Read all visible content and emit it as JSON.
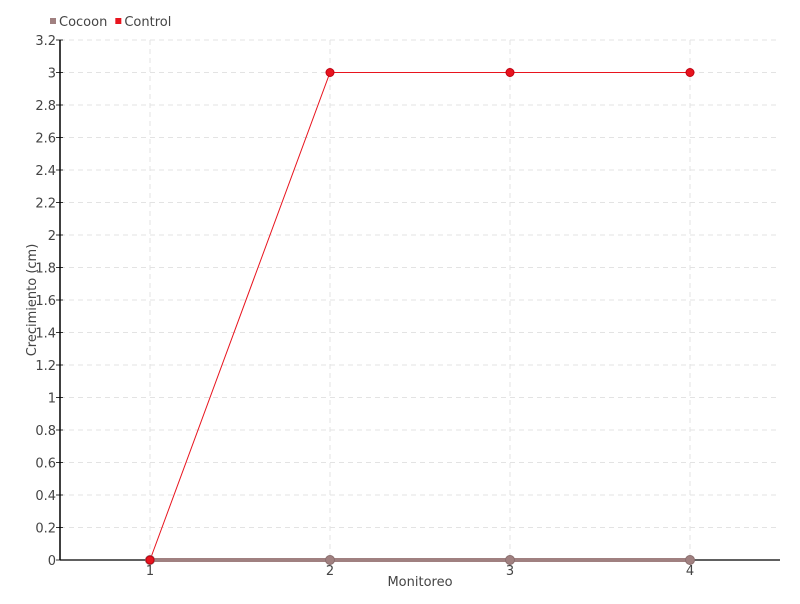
{
  "chart_data": {
    "type": "line",
    "title": "",
    "xlabel": "Monitoreo",
    "ylabel": "Crecimiento (cm)",
    "categories": [
      "1",
      "2",
      "3",
      "4"
    ],
    "ylim": [
      0,
      3.2
    ],
    "yticks": [
      "0",
      "0.2",
      "0.4",
      "0.6",
      "0.8",
      "1",
      "1.2",
      "1.4",
      "1.6",
      "1.8",
      "2",
      "2.2",
      "2.4",
      "2.6",
      "2.8",
      "3",
      "3.2"
    ],
    "grid": true,
    "legend_position": "top-left",
    "series": [
      {
        "name": "Cocoon",
        "values": [
          0,
          0,
          0,
          0
        ],
        "color": "#a08080"
      },
      {
        "name": "Control",
        "values": [
          0,
          3,
          3,
          3
        ],
        "color": "#e8141e"
      }
    ]
  }
}
